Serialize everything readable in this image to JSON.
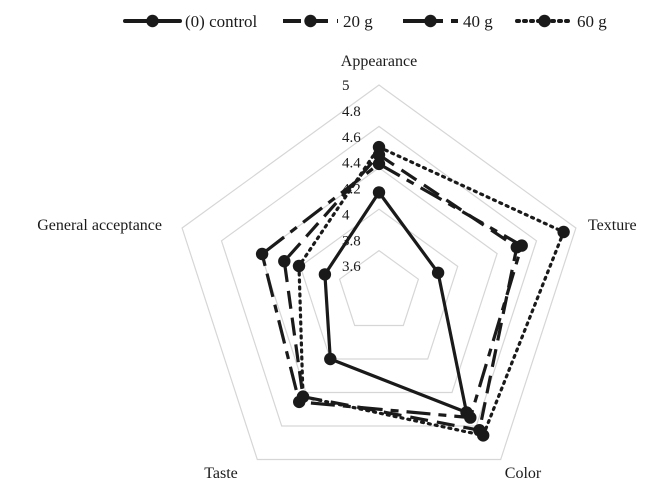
{
  "chart_data": {
    "type": "radar",
    "axes": [
      "Appearance",
      "Texture",
      "Color",
      "Taste",
      "General acceptance"
    ],
    "range": [
      3.4,
      5.0
    ],
    "ticks": [
      "3.6",
      "3.8",
      "4",
      "4.2",
      "4.4",
      "4.6",
      "4.8",
      "5"
    ],
    "grid": true,
    "legend_position": "top",
    "series": [
      {
        "name": "(0) control",
        "dash": "solid",
        "values": [
          4.17,
          3.88,
          4.55,
          4.04,
          3.84
        ]
      },
      {
        "name": "20 g",
        "dash": "dash",
        "values": [
          4.46,
          4.52,
          4.72,
          4.4,
          4.17
        ]
      },
      {
        "name": "40 g",
        "dash": "longdash",
        "values": [
          4.39,
          4.56,
          4.6,
          4.45,
          4.35
        ]
      },
      {
        "name": "60 g",
        "dash": "dot",
        "values": [
          4.52,
          4.9,
          4.77,
          4.4,
          4.05
        ]
      }
    ],
    "color": "#1a1a1a",
    "grid_color": "#d6d6d6"
  }
}
